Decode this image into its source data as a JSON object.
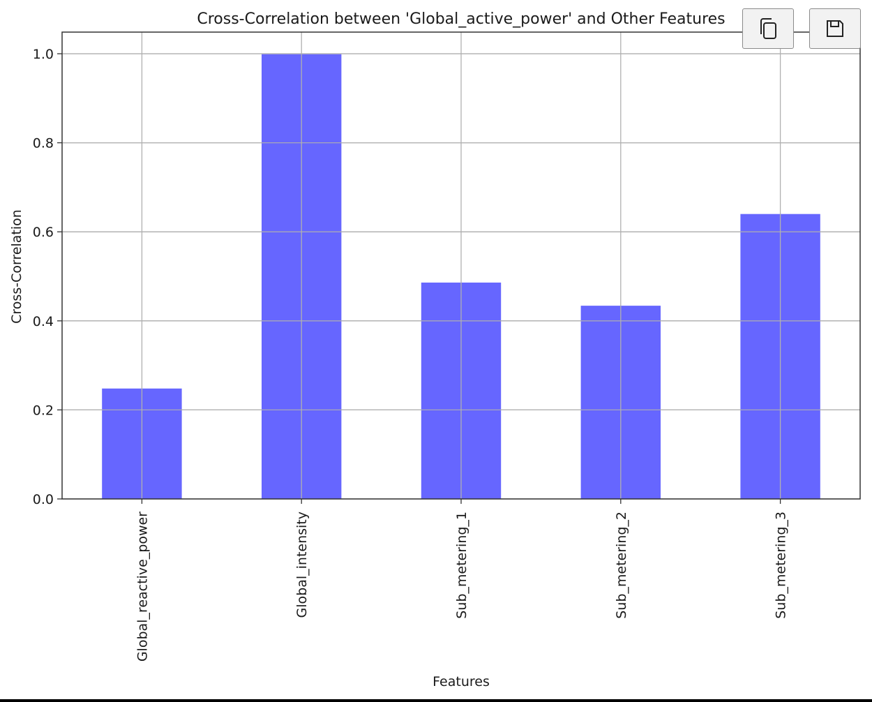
{
  "toolbar": {
    "copy_icon": "copy-icon",
    "save_icon": "floppy-disk-icon"
  },
  "chart_data": {
    "type": "bar",
    "title": "Cross-Correlation between 'Global_active_power' and Other Features",
    "xlabel": "Features",
    "ylabel": "Cross-Correlation",
    "categories": [
      "Global_reactive_power",
      "Global_intensity",
      "Sub_metering_1",
      "Sub_metering_2",
      "Sub_metering_3"
    ],
    "values": [
      0.248,
      0.999,
      0.486,
      0.434,
      0.64
    ],
    "ylim": [
      0.0,
      1.05
    ],
    "yticks": [
      0.0,
      0.2,
      0.4,
      0.6,
      0.8,
      1.0
    ],
    "ytick_labels": [
      "0.0",
      "0.2",
      "0.4",
      "0.6",
      "0.8",
      "1.0"
    ],
    "grid": true,
    "bar_color": "#6666ff",
    "grid_color": "#b0b0b0"
  }
}
